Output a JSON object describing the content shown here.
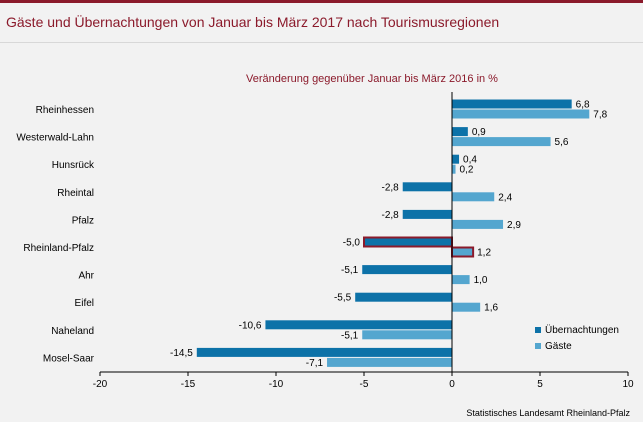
{
  "title": "Gäste und Übernachtungen von Januar bis März 2017 nach Tourismusregionen",
  "colors": {
    "brand": "#8b1a2b",
    "uebernachtungen": "#0d72a8",
    "gaeste": "#54a6cf",
    "highlight_border": "#8b1a2b"
  },
  "chart_data": {
    "type": "bar",
    "orientation": "horizontal",
    "subtitle": "Veränderung gegenüber Januar bis März 2016 in %",
    "categories": [
      "Rheinhessen",
      "Westerwald-Lahn",
      "Hunsrück",
      "Rheintal",
      "Pfalz",
      "Rheinland-Pfalz",
      "Ahr",
      "Eifel",
      "Naheland",
      "Mosel-Saar"
    ],
    "highlight_category": "Rheinland-Pfalz",
    "series": [
      {
        "name": "Übernachtungen",
        "values": [
          6.8,
          0.9,
          0.4,
          -2.8,
          -2.8,
          -5.0,
          -5.1,
          -5.5,
          -10.6,
          -14.5
        ],
        "labels": [
          "6,8",
          "0,9",
          "0,4",
          "-2,8",
          "-2,8",
          "-5,0",
          "-5,1",
          "-5,5",
          "-10,6",
          "-14,5"
        ]
      },
      {
        "name": "Gäste",
        "values": [
          7.8,
          5.6,
          0.2,
          2.4,
          2.9,
          1.2,
          1.0,
          1.6,
          -5.1,
          -7.1
        ],
        "labels": [
          "7,8",
          "5,6",
          "0,2",
          "2,4",
          "2,9",
          "1,2",
          "1,0",
          "1,6",
          "-5,1",
          "-7,1"
        ]
      }
    ],
    "xlim": [
      -20,
      10
    ],
    "xticks": [
      -20,
      -15,
      -10,
      -5,
      0,
      5,
      10
    ],
    "legend_position": "bottom-right",
    "grid": false
  },
  "source": "Statistisches Landesamt Rheinland-Pfalz"
}
